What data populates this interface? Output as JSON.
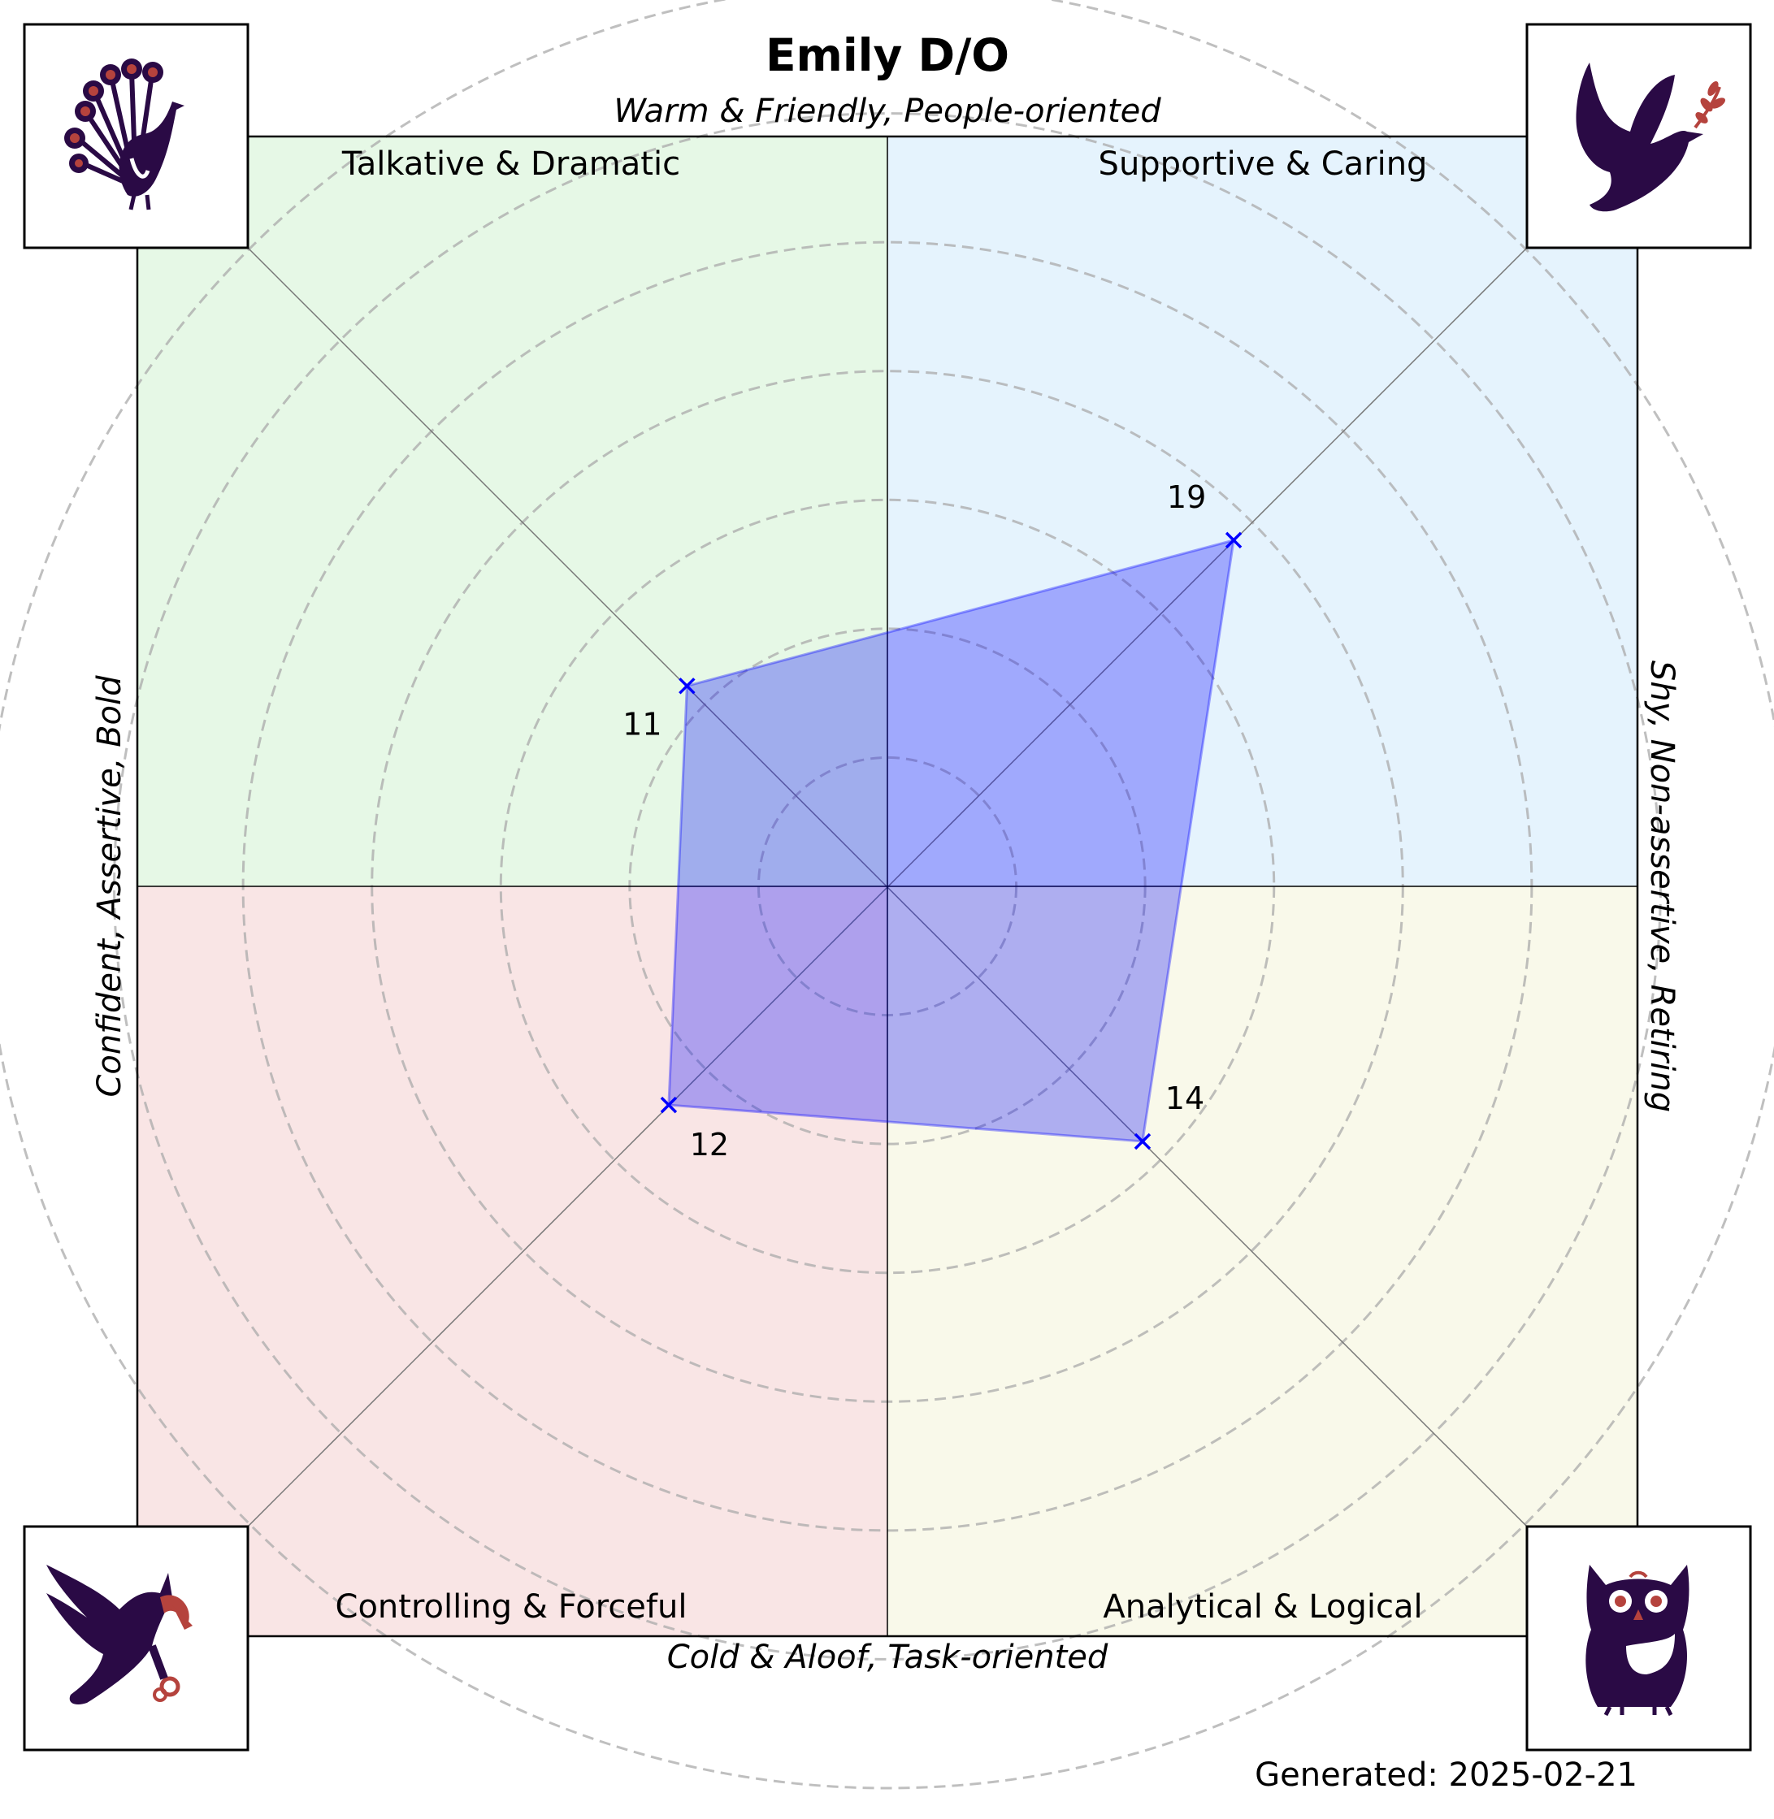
{
  "chart_data": {
    "type": "radar",
    "title": "Emily D/O",
    "axis_labels": {
      "top": "Warm & Friendly, People-oriented",
      "bottom": "Cold & Aloof, Task-oriented",
      "left": "Confident, Assertive, Bold",
      "right": "Shy, Non-assertive, Retiring"
    },
    "quadrants": [
      {
        "position": "top-left",
        "label": "Talkative & Dramatic",
        "color": "#e6f8e6",
        "icon": "peacock-icon"
      },
      {
        "position": "top-right",
        "label": "Supportive & Caring",
        "color": "#e5f3fd",
        "icon": "dove-icon"
      },
      {
        "position": "bottom-left",
        "label": "Controlling & Forceful",
        "color": "#f9e5e5",
        "icon": "eagle-icon"
      },
      {
        "position": "bottom-right",
        "label": "Analytical & Logical",
        "color": "#f9f9ea",
        "icon": "owl-icon"
      }
    ],
    "points": [
      {
        "quadrant": "top-left",
        "value": 11
      },
      {
        "quadrant": "top-right",
        "value": 19
      },
      {
        "quadrant": "bottom-right",
        "value": 14
      },
      {
        "quadrant": "bottom-left",
        "value": 12
      }
    ],
    "rlim": [
      0,
      35
    ],
    "ring_values": [
      5,
      10,
      15,
      20,
      25,
      30,
      35
    ],
    "grid": true,
    "series_color": "#0000ff"
  },
  "footer": {
    "generated": "Generated: 2025-02-21"
  }
}
